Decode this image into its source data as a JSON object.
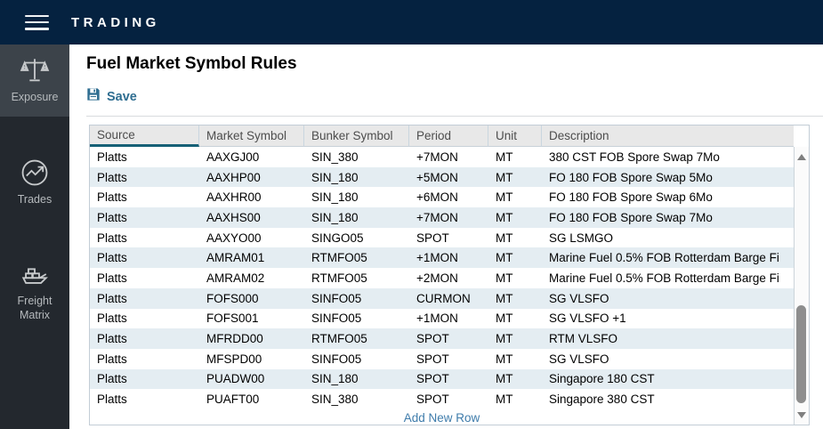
{
  "topbar": {
    "title": "TRADING"
  },
  "sidebar": {
    "items": [
      {
        "label": "Exposure",
        "icon": "balance-scale-icon",
        "active": true
      },
      {
        "label": "Trades",
        "icon": "trend-chart-icon",
        "active": false
      },
      {
        "label": "Freight Matrix",
        "icon": "ship-icon",
        "active": false
      }
    ]
  },
  "main": {
    "title": "Fuel Market Symbol Rules",
    "save_button": {
      "label": "Save",
      "icon": "save-disk-icon"
    },
    "add_new_row_label": "Add New Row"
  },
  "table": {
    "columns": [
      "Source",
      "Market Symbol",
      "Bunker Symbol",
      "Period",
      "Unit",
      "Description"
    ],
    "sorted_column": "Source",
    "rows": [
      [
        "Platts",
        "AAXGJ00",
        "SIN_380",
        "+7MON",
        "MT",
        "380 CST FOB Spore Swap 7Mo"
      ],
      [
        "Platts",
        "AAXHP00",
        "SIN_180",
        "+5MON",
        "MT",
        "FO 180 FOB Spore Swap 5Mo"
      ],
      [
        "Platts",
        "AAXHR00",
        "SIN_180",
        "+6MON",
        "MT",
        "FO 180 FOB Spore Swap 6Mo"
      ],
      [
        "Platts",
        "AAXHS00",
        "SIN_180",
        "+7MON",
        "MT",
        "FO 180 FOB Spore Swap 7Mo"
      ],
      [
        "Platts",
        "AAXYO00",
        "SINGO05",
        "SPOT",
        "MT",
        "SG LSMGO"
      ],
      [
        "Platts",
        "AMRAM01",
        "RTMFO05",
        "+1MON",
        "MT",
        "Marine Fuel 0.5% FOB Rotterdam Barge Fi"
      ],
      [
        "Platts",
        "AMRAM02",
        "RTMFO05",
        "+2MON",
        "MT",
        "Marine Fuel 0.5% FOB Rotterdam Barge Fi"
      ],
      [
        "Platts",
        "FOFS000",
        "SINFO05",
        "CURMON",
        "MT",
        "SG VLSFO"
      ],
      [
        "Platts",
        "FOFS001",
        "SINFO05",
        "+1MON",
        "MT",
        "SG VLSFO +1"
      ],
      [
        "Platts",
        "MFRDD00",
        "RTMFO05",
        "SPOT",
        "MT",
        "RTM VLSFO"
      ],
      [
        "Platts",
        "MFSPD00",
        "SINFO05",
        "SPOT",
        "MT",
        "SG VLSFO"
      ],
      [
        "Platts",
        "PUADW00",
        "SIN_180",
        "SPOT",
        "MT",
        "Singapore 180 CST"
      ],
      [
        "Platts",
        "PUAFT00",
        "SIN_380",
        "SPOT",
        "MT",
        "Singapore 380 CST"
      ]
    ]
  },
  "colors": {
    "topbar_bg": "#052240",
    "sidebar_bg": "#23282e",
    "sidebar_active_bg": "#3c434a",
    "accent_blue": "#2f6e91",
    "sort_underline": "#166076",
    "row_alt_bg": "#e4edf2",
    "add_link": "#3f7cab"
  }
}
